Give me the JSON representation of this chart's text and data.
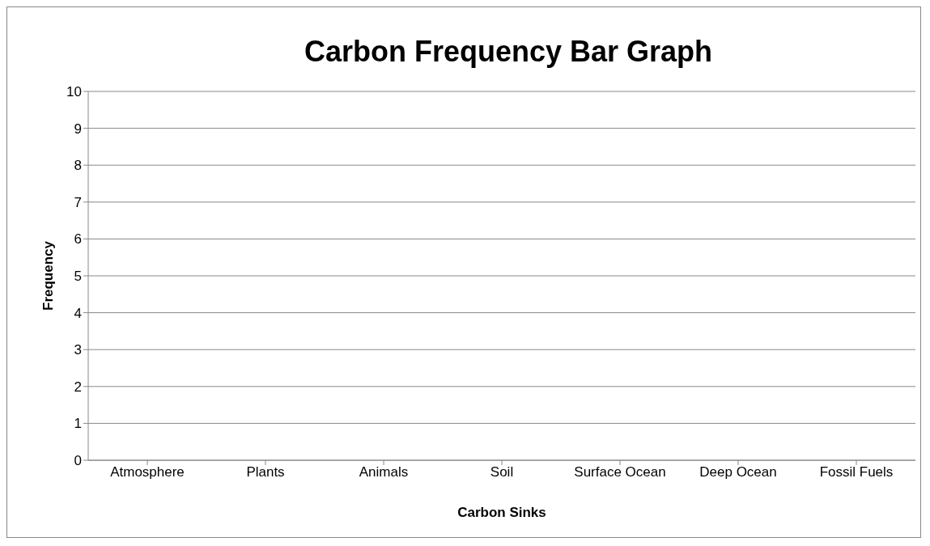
{
  "chart_data": {
    "type": "bar",
    "title": "Carbon Frequency Bar Graph",
    "xlabel": "Carbon Sinks",
    "ylabel": "Frequency",
    "categories": [
      "Atmosphere",
      "Plants",
      "Animals",
      "Soil",
      "Surface Ocean",
      "Deep Ocean",
      "Fossil Fuels"
    ],
    "values": [
      null,
      null,
      null,
      null,
      null,
      null,
      null
    ],
    "ylim": [
      0,
      10
    ],
    "yticks": [
      0,
      1,
      2,
      3,
      4,
      5,
      6,
      7,
      8,
      9,
      10
    ],
    "grid": "y"
  }
}
